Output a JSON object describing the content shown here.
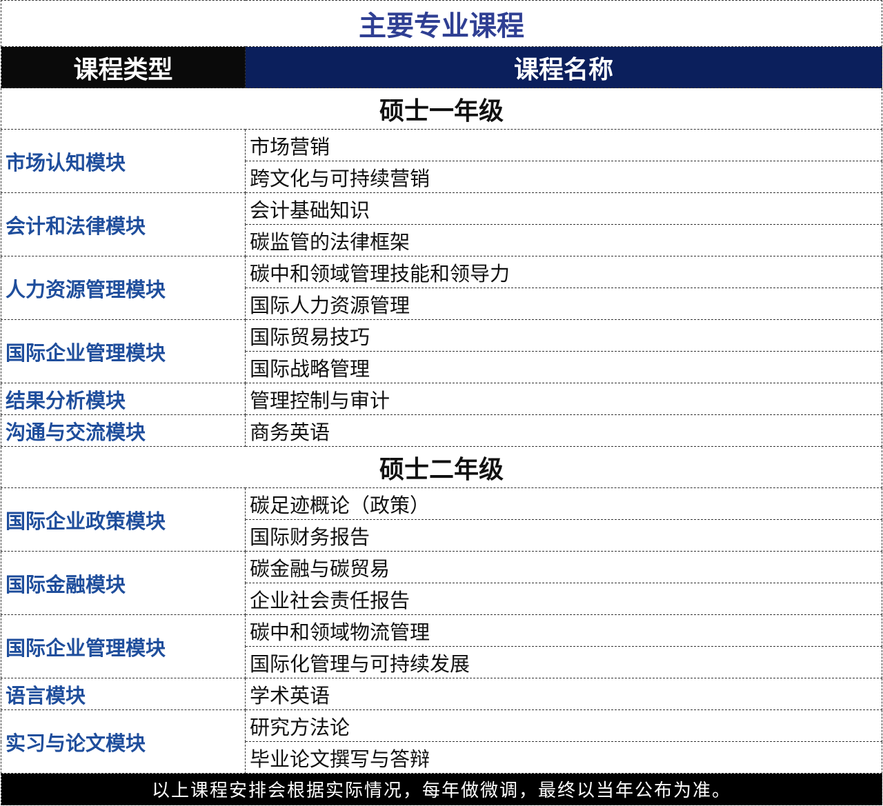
{
  "title": "主要专业课程",
  "header": {
    "type": "课程类型",
    "name": "课程名称"
  },
  "years": [
    {
      "label": "硕士一年级",
      "groups": [
        {
          "module": "市场认知模块",
          "courses": [
            "市场营销",
            "跨文化与可持续营销"
          ]
        },
        {
          "module": "会计和法律模块",
          "courses": [
            "会计基础知识",
            "碳监管的法律框架"
          ]
        },
        {
          "module": "人力资源管理模块",
          "courses": [
            "碳中和领域管理技能和领导力",
            "国际人力资源管理"
          ]
        },
        {
          "module": "国际企业管理模块",
          "courses": [
            "国际贸易技巧",
            "国际战略管理"
          ]
        },
        {
          "module": "结果分析模块",
          "courses": [
            "管理控制与审计"
          ]
        },
        {
          "module": "沟通与交流模块",
          "courses": [
            "商务英语"
          ]
        }
      ]
    },
    {
      "label": "硕士二年级",
      "groups": [
        {
          "module": "国际企业政策模块",
          "courses": [
            "碳足迹概论（政策）",
            "国际财务报告"
          ]
        },
        {
          "module": "国际金融模块",
          "courses": [
            "碳金融与碳贸易",
            "企业社会责任报告"
          ]
        },
        {
          "module": "国际企业管理模块",
          "courses": [
            "碳中和领域物流管理",
            "国际化管理与可持续发展"
          ]
        },
        {
          "module": "语言模块",
          "courses": [
            "学术英语"
          ]
        },
        {
          "module": "实习与论文模块",
          "courses": [
            "研究方法论",
            "毕业论文撰写与答辩"
          ]
        }
      ]
    }
  ],
  "footer": "以上课程安排会根据实际情况，每年做微调，最终以当年公布为准。",
  "colors": {
    "title": "#2f3f93",
    "header_left": "#0a0a0a",
    "header_right": "#0b1f5c",
    "module": "#1f4e9c"
  }
}
